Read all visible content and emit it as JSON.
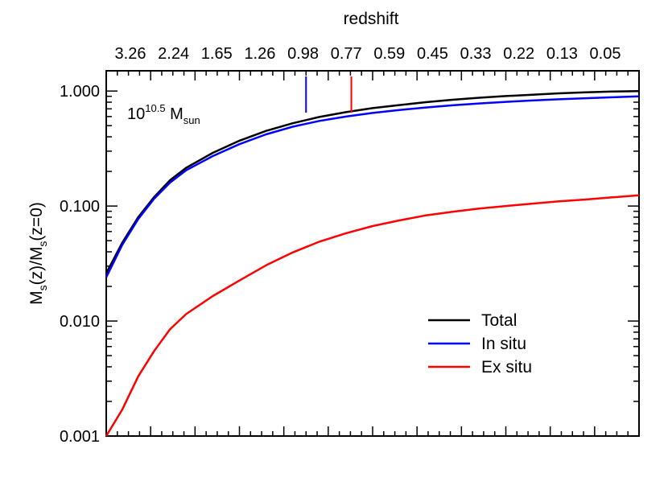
{
  "chart_data": {
    "type": "line",
    "top_axis_label": "redshift",
    "top_ticks": [
      "3.26",
      "2.24",
      "1.65",
      "1.26",
      "0.98",
      "0.77",
      "0.59",
      "0.45",
      "0.33",
      "0.22",
      "0.13",
      "0.05"
    ],
    "ylabel_parts": {
      "m1": "M",
      "s1": "s",
      "mid": "(z)/M",
      "s2": "s",
      "end": "(z=0)"
    },
    "y_scale": "log",
    "ylim": [
      0.001,
      1.5
    ],
    "y_ticks": [
      {
        "value": 1.0,
        "label": "1.000"
      },
      {
        "value": 0.1,
        "label": "0.100"
      },
      {
        "value": 0.01,
        "label": "0.010"
      },
      {
        "value": 0.001,
        "label": "0.001"
      }
    ],
    "mass_annotation": {
      "base": "10",
      "exp": "10.5",
      "m": " M",
      "sub": "sun"
    },
    "x": [
      0,
      0.03,
      0.06,
      0.09,
      0.12,
      0.15,
      0.2,
      0.25,
      0.3,
      0.35,
      0.4,
      0.45,
      0.5,
      0.55,
      0.6,
      0.65,
      0.7,
      0.75,
      0.8,
      0.85,
      0.9,
      0.95,
      1.0
    ],
    "series": [
      {
        "name": "Total",
        "color": "#000000",
        "values": [
          0.026,
          0.048,
          0.08,
          0.12,
          0.168,
          0.215,
          0.29,
          0.37,
          0.45,
          0.525,
          0.595,
          0.655,
          0.71,
          0.755,
          0.8,
          0.84,
          0.875,
          0.905,
          0.93,
          0.955,
          0.975,
          0.99,
          1.0
        ]
      },
      {
        "name": "In situ",
        "color": "#0000ff",
        "values": [
          0.024,
          0.046,
          0.077,
          0.116,
          0.16,
          0.205,
          0.272,
          0.345,
          0.42,
          0.49,
          0.55,
          0.6,
          0.645,
          0.685,
          0.72,
          0.752,
          0.78,
          0.805,
          0.828,
          0.848,
          0.866,
          0.883,
          0.9
        ]
      },
      {
        "name": "Ex situ",
        "color": "#ff0000",
        "values": [
          0.001,
          0.0017,
          0.0033,
          0.0055,
          0.0085,
          0.0115,
          0.0165,
          0.0225,
          0.0305,
          0.0395,
          0.049,
          0.058,
          0.067,
          0.075,
          0.083,
          0.089,
          0.095,
          0.1,
          0.105,
          0.11,
          0.114,
          0.119,
          0.124
        ]
      }
    ],
    "markers": [
      {
        "series": "In situ",
        "color": "#0000ff",
        "x": 0.375
      },
      {
        "series": "Ex situ",
        "color": "#ff0000",
        "x": 0.46
      }
    ],
    "legend": {
      "placement": "bottom-right",
      "entries": [
        "Total",
        "In situ",
        "Ex situ"
      ]
    }
  }
}
